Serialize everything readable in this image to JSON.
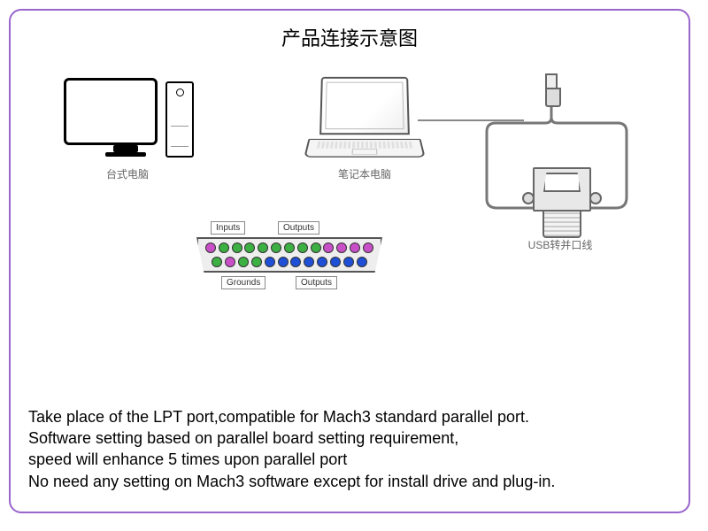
{
  "title": "产品连接示意图",
  "nodes": {
    "desktop": {
      "label": "台式电脑"
    },
    "laptop": {
      "label": "笔记本电脑"
    },
    "usb": {
      "label": "USB转并口线"
    }
  },
  "pinout": {
    "tags": {
      "inputs": "Inputs",
      "outputs1": "Outputs",
      "grounds": "Grounds",
      "outputs2": "Outputs"
    },
    "top_colors": [
      "#c94fc9",
      "#3cb043",
      "#3cb043",
      "#3cb043",
      "#3cb043",
      "#3cb043",
      "#3cb043",
      "#3cb043",
      "#3cb043",
      "#c94fc9",
      "#c94fc9",
      "#c94fc9",
      "#c94fc9"
    ],
    "bottom_colors": [
      "#3cb043",
      "#c94fc9",
      "#3cb043",
      "#3cb043",
      "#1f4fd6",
      "#1f4fd6",
      "#1f4fd6",
      "#1f4fd6",
      "#1f4fd6",
      "#1f4fd6",
      "#1f4fd6",
      "#1f4fd6"
    ]
  },
  "cable": {
    "stroke": "#777",
    "width": 3
  },
  "frame_border": "#9966cc",
  "description": {
    "line1": "Take place of the LPT port,compatible for Mach3 standard parallel port.",
    "line2": "Software setting based on parallel board setting requirement,",
    "line3": "speed will enhance 5 times upon parallel port",
    "line4": "No need any setting on Mach3 software except for install drive and plug-in."
  }
}
